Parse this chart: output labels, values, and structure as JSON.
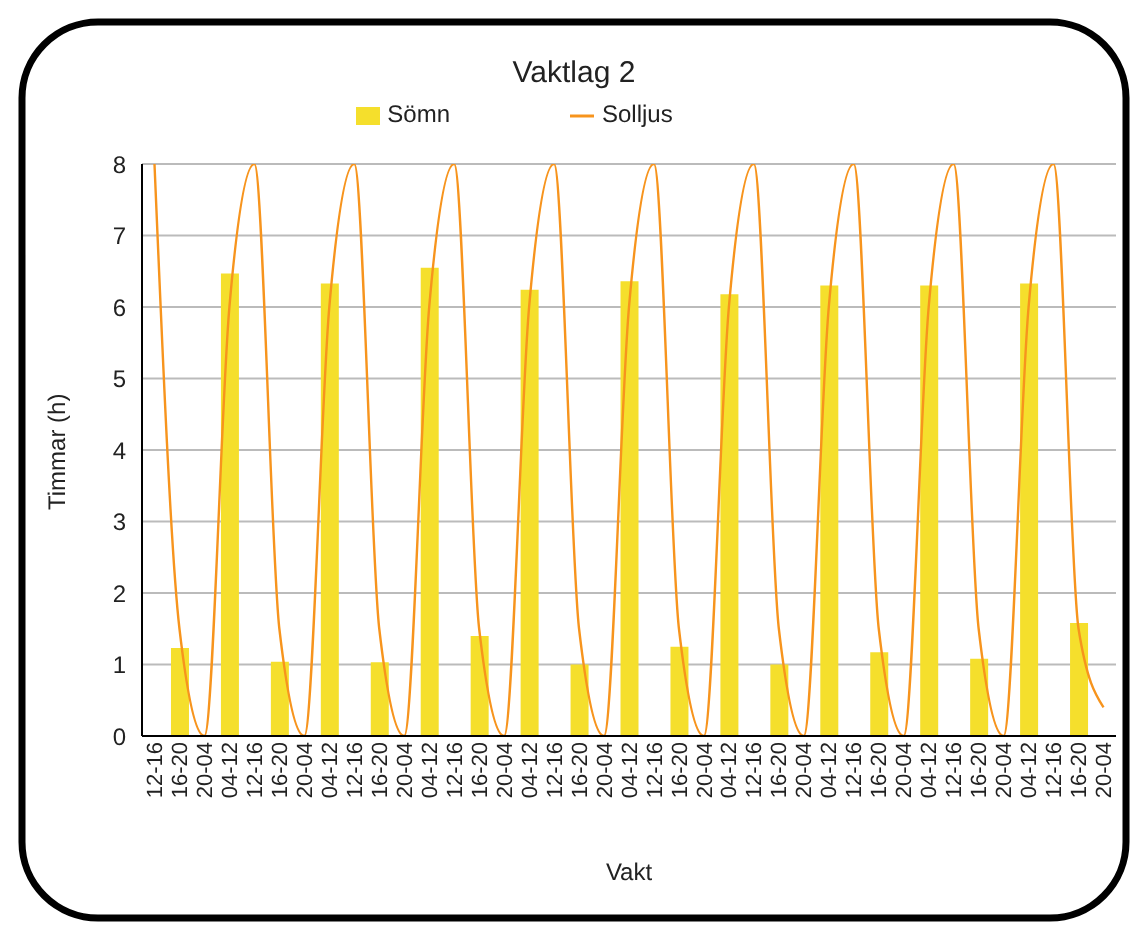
{
  "chart_data": {
    "type": "bar",
    "title": "Vaktlag 2",
    "xlabel": "Vakt",
    "ylabel": "Timmar (h)",
    "categories": [
      "12-16",
      "16-20",
      "20-04",
      "04-12",
      "12-16",
      "16-20",
      "20-04",
      "04-12",
      "12-16",
      "16-20",
      "20-04",
      "04-12",
      "12-16",
      "16-20",
      "20-04",
      "04-12",
      "12-16",
      "16-20",
      "20-04",
      "04-12",
      "12-16",
      "16-20",
      "20-04",
      "04-12",
      "12-16",
      "16-20",
      "20-04",
      "04-12",
      "12-16",
      "16-20",
      "20-04",
      "04-12",
      "12-16",
      "16-20",
      "20-04",
      "04-12",
      "12-16",
      "16-20",
      "20-04"
    ],
    "series": [
      {
        "name": "Sömn",
        "color": "#f5df2c",
        "values": [
          null,
          1.23,
          null,
          6.47,
          null,
          1.04,
          null,
          6.33,
          null,
          1.03,
          null,
          6.55,
          null,
          1.4,
          null,
          6.24,
          null,
          1.0,
          null,
          6.36,
          null,
          1.25,
          null,
          6.18,
          null,
          1.0,
          null,
          6.3,
          null,
          1.17,
          null,
          6.3,
          null,
          1.08,
          null,
          6.33,
          null,
          1.58,
          null
        ]
      },
      {
        "name": "Solljus",
        "type": "line",
        "color": "#f7941d",
        "values": [
          8,
          1.5,
          0,
          6,
          8,
          1.5,
          0,
          6,
          8,
          1.5,
          0,
          6,
          8,
          1.5,
          0,
          6,
          8,
          1.5,
          0,
          6,
          8,
          1.5,
          0,
          6,
          8,
          1.5,
          0,
          6,
          8,
          1.5,
          0,
          6,
          8,
          1.5,
          0,
          6,
          8,
          1.5,
          0.4
        ]
      }
    ],
    "ylim": [
      0,
      8
    ],
    "yticks": [
      0,
      1,
      2,
      3,
      4,
      5,
      6,
      7,
      8
    ],
    "grid": "y",
    "legend": "top",
    "marker": "none",
    "line_style": "solid"
  }
}
